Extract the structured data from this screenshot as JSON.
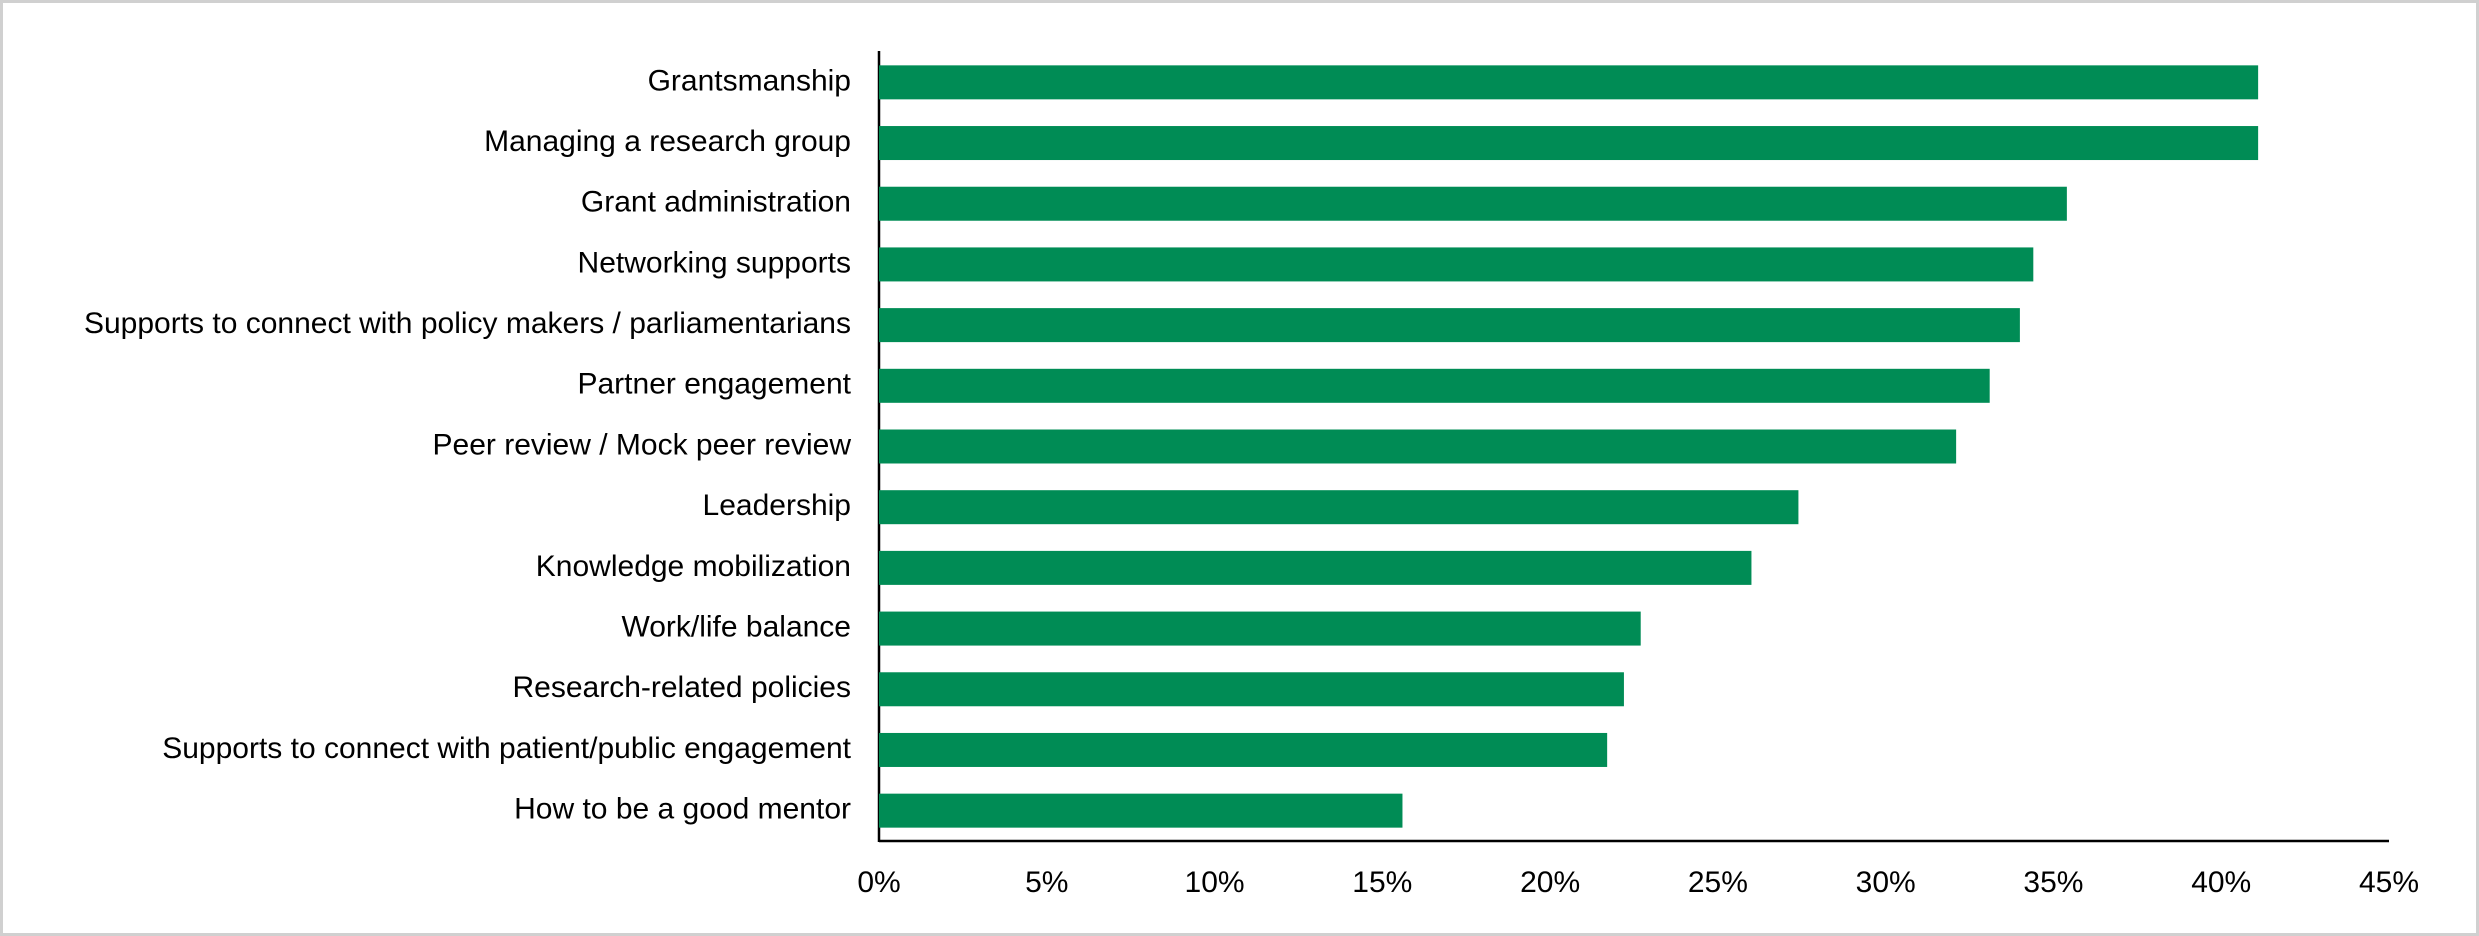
{
  "chart_data": {
    "type": "bar",
    "orientation": "horizontal",
    "categories": [
      "Grantsmanship",
      "Managing a research group",
      "Grant administration",
      "Networking supports",
      "Supports to connect with policy makers / parliamentarians",
      "Partner engagement",
      "Peer review / Mock peer review",
      "Leadership",
      "Knowledge mobilization",
      "Work/life balance",
      "Research-related policies",
      "Supports to connect with patient/public engagement",
      "How to be a good mentor"
    ],
    "values": [
      41.1,
      41.1,
      35.4,
      34.4,
      34.0,
      33.1,
      32.1,
      27.4,
      26.0,
      22.7,
      22.2,
      21.7,
      15.6
    ],
    "color": "#008c55",
    "xlim": [
      0,
      45
    ],
    "xticks": [
      {
        "value": 0,
        "label": "0%"
      },
      {
        "value": 5,
        "label": "5%"
      },
      {
        "value": 10,
        "label": "10%"
      },
      {
        "value": 15,
        "label": "15%"
      },
      {
        "value": 20,
        "label": "20%"
      },
      {
        "value": 25,
        "label": "25%"
      },
      {
        "value": 30,
        "label": "30%"
      },
      {
        "value": 35,
        "label": "35%"
      },
      {
        "value": 40,
        "label": "40%"
      },
      {
        "value": 45,
        "label": "45%"
      }
    ],
    "grid": false
  }
}
